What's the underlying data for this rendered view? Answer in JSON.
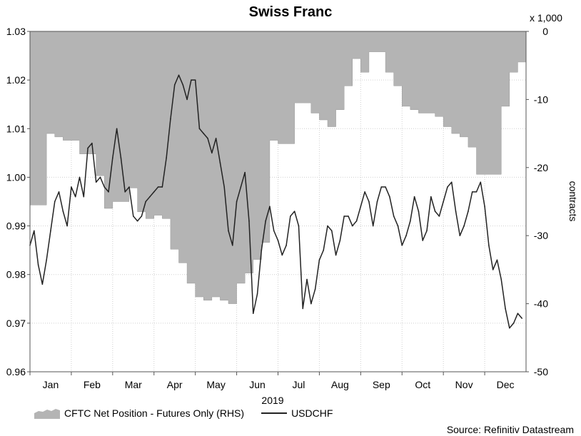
{
  "title": "Swiss Franc",
  "source": "Source: Refinitiv Datastream",
  "chart_data": {
    "type": "line",
    "title": "Swiss Franc",
    "xlabel": "2019",
    "x_ticks": [
      "Jan",
      "Feb",
      "Mar",
      "Apr",
      "May",
      "Jun",
      "Jul",
      "Aug",
      "Sep",
      "Oct",
      "Nov",
      "Dec"
    ],
    "left_axis": {
      "ylim": [
        0.96,
        1.03
      ],
      "ticks": [
        "0.96",
        "0.97",
        "0.98",
        "0.99",
        "1.00",
        "1.01",
        "1.02",
        "1.03"
      ]
    },
    "right_axis": {
      "label": "contracts",
      "multiplier": "x 1,000",
      "ylim": [
        -50,
        0
      ],
      "ticks": [
        "0",
        "-10",
        "-20",
        "-30",
        "-40",
        "-50"
      ]
    },
    "legend_placement": "bottom-left",
    "grid": true,
    "series": [
      {
        "name": "CFTC Net Position - Futures Only (RHS)",
        "type": "area",
        "axis": "right",
        "color": "#b4b4b4",
        "x": [
          0.1,
          0.3,
          0.5,
          0.7,
          0.9,
          1.1,
          1.3,
          1.5,
          1.7,
          1.9,
          2.1,
          2.3,
          2.5,
          2.7,
          2.9,
          3.1,
          3.3,
          3.5,
          3.7,
          3.9,
          4.1,
          4.3,
          4.5,
          4.7,
          4.9,
          5.1,
          5.3,
          5.5,
          5.7,
          5.9,
          6.1,
          6.3,
          6.5,
          6.7,
          6.9,
          7.1,
          7.3,
          7.5,
          7.7,
          7.9,
          8.1,
          8.3,
          8.5,
          8.7,
          8.9,
          9.1,
          9.3,
          9.5,
          9.7,
          9.9,
          10.1,
          10.3,
          10.5,
          10.7,
          10.9,
          11.1,
          11.3,
          11.5,
          11.7,
          11.9
        ],
        "y": [
          -25.5,
          -25.5,
          -15,
          -15.5,
          -16,
          -16,
          -18,
          -18,
          -21.2,
          -26,
          -25,
          -25,
          -23,
          -26.5,
          -27.5,
          -27,
          -27.5,
          -32,
          -34,
          -37,
          -39,
          -39.5,
          -39,
          -39.5,
          -40,
          -37,
          -35.5,
          -33.5,
          -31,
          -16,
          -16.5,
          -16.5,
          -10.5,
          -10.5,
          -12,
          -13,
          -14,
          -11.5,
          -8,
          -4,
          -6,
          -3,
          -3,
          -6,
          -8,
          -11,
          -11.5,
          -12,
          -12,
          -12.5,
          -14,
          -15,
          -15.5,
          -17,
          -21,
          -21,
          -21,
          -11,
          -6,
          -4.5
        ]
      },
      {
        "name": "USDCHF",
        "type": "line",
        "axis": "left",
        "color": "#222222",
        "x": [
          0.0,
          0.1,
          0.2,
          0.3,
          0.4,
          0.5,
          0.6,
          0.7,
          0.8,
          0.9,
          1.0,
          1.1,
          1.2,
          1.3,
          1.4,
          1.5,
          1.6,
          1.7,
          1.8,
          1.9,
          2.0,
          2.1,
          2.2,
          2.3,
          2.4,
          2.5,
          2.6,
          2.7,
          2.8,
          2.9,
          3.0,
          3.1,
          3.2,
          3.3,
          3.4,
          3.5,
          3.6,
          3.7,
          3.8,
          3.9,
          4.0,
          4.1,
          4.2,
          4.3,
          4.4,
          4.5,
          4.6,
          4.7,
          4.8,
          4.9,
          5.0,
          5.1,
          5.2,
          5.3,
          5.4,
          5.5,
          5.6,
          5.7,
          5.8,
          5.9,
          6.0,
          6.1,
          6.2,
          6.3,
          6.4,
          6.5,
          6.6,
          6.7,
          6.8,
          6.9,
          7.0,
          7.1,
          7.2,
          7.3,
          7.4,
          7.5,
          7.6,
          7.7,
          7.8,
          7.9,
          8.0,
          8.1,
          8.2,
          8.3,
          8.4,
          8.5,
          8.6,
          8.7,
          8.8,
          8.9,
          9.0,
          9.1,
          9.2,
          9.3,
          9.4,
          9.5,
          9.6,
          9.7,
          9.8,
          9.9,
          10.0,
          10.1,
          10.2,
          10.3,
          10.4,
          10.5,
          10.6,
          10.7,
          10.8,
          10.9,
          11.0,
          11.1,
          11.2,
          11.3,
          11.4,
          11.5,
          11.6,
          11.7,
          11.8,
          11.9
        ],
        "y": [
          0.986,
          0.989,
          0.982,
          0.978,
          0.983,
          0.989,
          0.995,
          0.997,
          0.993,
          0.99,
          0.998,
          0.996,
          1.0,
          0.996,
          1.006,
          1.007,
          0.999,
          1.0,
          0.998,
          0.997,
          1.004,
          1.01,
          1.004,
          0.997,
          0.998,
          0.992,
          0.991,
          0.992,
          0.995,
          0.996,
          0.997,
          0.998,
          0.998,
          1.004,
          1.012,
          1.019,
          1.021,
          1.019,
          1.016,
          1.02,
          1.02,
          1.01,
          1.009,
          1.008,
          1.005,
          1.008,
          1.003,
          0.998,
          0.989,
          0.986,
          0.995,
          0.998,
          1.001,
          0.991,
          0.972,
          0.976,
          0.985,
          0.991,
          0.994,
          0.989,
          0.987,
          0.984,
          0.986,
          0.992,
          0.993,
          0.99,
          0.973,
          0.979,
          0.974,
          0.977,
          0.983,
          0.985,
          0.99,
          0.989,
          0.984,
          0.987,
          0.992,
          0.992,
          0.99,
          0.991,
          0.994,
          0.997,
          0.995,
          0.99,
          0.995,
          0.998,
          0.998,
          0.996,
          0.992,
          0.99,
          0.986,
          0.988,
          0.991,
          0.996,
          0.993,
          0.987,
          0.989,
          0.996,
          0.993,
          0.992,
          0.995,
          0.998,
          0.999,
          0.993,
          0.988,
          0.99,
          0.993,
          0.997,
          0.997,
          0.999,
          0.994,
          0.986,
          0.981,
          0.983,
          0.979,
          0.973,
          0.969,
          0.97,
          0.972,
          0.971
        ]
      }
    ]
  }
}
